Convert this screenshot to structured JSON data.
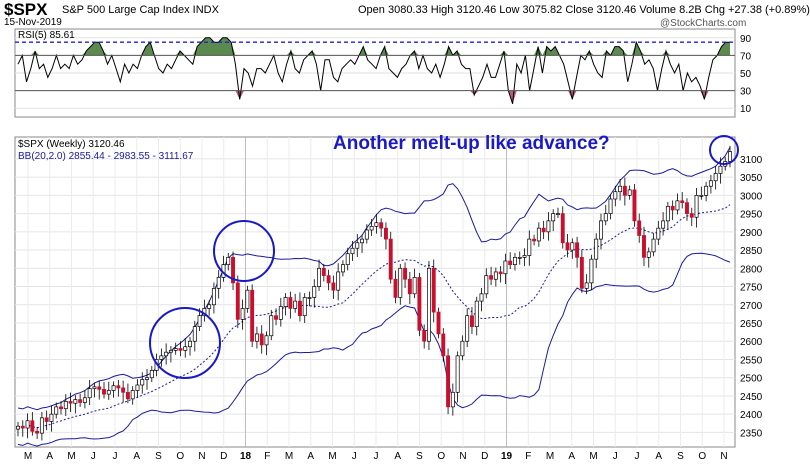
{
  "header": {
    "symbol": "$SPX",
    "name": "S&P 500 Large Cap Index INDX",
    "date": "15-Nov-2019",
    "ohlc": "Open 3080.33  High 3120.46  Low 3075.82  Close 3120.46  Volume 8.2B  Chg +27.38 (+0.89%)",
    "brand": "@StockCharts.com"
  },
  "annotation": "Another melt-up like advance?",
  "chart_data": [
    {
      "type": "line",
      "panel": "RSI",
      "legend": "RSI(5) 85.61",
      "ylim": [
        0,
        100
      ],
      "y_ticks": [
        "90",
        "70",
        "50",
        "30",
        "10"
      ],
      "reference_lines": [
        85,
        70,
        30
      ],
      "fill_above": 70,
      "fill_below": 30,
      "series": [
        {
          "values": [
            60,
            70,
            40,
            55,
            75,
            55,
            60,
            45,
            55,
            70,
            55,
            60,
            55,
            70,
            60,
            65,
            75,
            80,
            85,
            85,
            75,
            60,
            70,
            55,
            40,
            60,
            50,
            60,
            55,
            70,
            80,
            85,
            70,
            55,
            50,
            60,
            55,
            65,
            75,
            70,
            65,
            60,
            80,
            85,
            90,
            90,
            85,
            85,
            90,
            90,
            85,
            60,
            20,
            55,
            50,
            35,
            55,
            55,
            50,
            60,
            70,
            50,
            40,
            60,
            75,
            55,
            50,
            65,
            70,
            75,
            60,
            30,
            65,
            65,
            45,
            40,
            55,
            60,
            65,
            60,
            70,
            80,
            65,
            60,
            55,
            70,
            80,
            55,
            50,
            45,
            55,
            60,
            70,
            75,
            55,
            70,
            55,
            50,
            60,
            45,
            60,
            80,
            70,
            75,
            60,
            55,
            55,
            25,
            35,
            45,
            60,
            45,
            45,
            60,
            75,
            30,
            15,
            60,
            50,
            70,
            30,
            55,
            80,
            50,
            80,
            75,
            80,
            70,
            60,
            40,
            20,
            45,
            70,
            65,
            75,
            60,
            50,
            45,
            75,
            70,
            80,
            80,
            75,
            40,
            60,
            85,
            75,
            60,
            65,
            55,
            30,
            55,
            75,
            60,
            50,
            60,
            30,
            50,
            40,
            45,
            35,
            20,
            45,
            65,
            70,
            80,
            85,
            85
          ]
        }
      ]
    },
    {
      "type": "candlestick",
      "panel": "Price",
      "legend": "$SPX (Weekly) 3120.46",
      "bb_legend": "BB(20,2.0) 2855.44 - 2983.55 - 3111.67",
      "ylim": [
        2310,
        3160
      ],
      "y_ticks": [
        "3100",
        "3050",
        "3000",
        "2950",
        "2900",
        "2850",
        "2800",
        "2750",
        "2700",
        "2650",
        "2600",
        "2550",
        "2500",
        "2450",
        "2400",
        "2350"
      ],
      "x_tick_labels": [
        "M",
        "A",
        "M",
        "J",
        "J",
        "A",
        "S",
        "O",
        "N",
        "D",
        "18",
        "F",
        "M",
        "A",
        "M",
        "J",
        "J",
        "A",
        "S",
        "O",
        "N",
        "D",
        "19",
        "F",
        "M",
        "A",
        "M",
        "J",
        "J",
        "A",
        "S",
        "O",
        "N"
      ],
      "close": [
        2367,
        2362,
        2382,
        2353,
        2348,
        2390,
        2380,
        2400,
        2420,
        2415,
        2435,
        2430,
        2440,
        2432,
        2445,
        2470,
        2475,
        2468,
        2455,
        2465,
        2478,
        2472,
        2460,
        2442,
        2465,
        2480,
        2495,
        2500,
        2520,
        2550,
        2560,
        2570,
        2575,
        2580,
        2575,
        2585,
        2600,
        2640,
        2670,
        2690,
        2700,
        2745,
        2775,
        2810,
        2830,
        2760,
        2660,
        2690,
        2740,
        2600,
        2620,
        2590,
        2615,
        2670,
        2660,
        2695,
        2720,
        2690,
        2710,
        2670,
        2720,
        2720,
        2750,
        2800,
        2780,
        2760,
        2740,
        2790,
        2810,
        2840,
        2855,
        2870,
        2880,
        2905,
        2915,
        2925,
        2910,
        2880,
        2770,
        2720,
        2800,
        2770,
        2730,
        2775,
        2630,
        2600,
        2800,
        2680,
        2620,
        2560,
        2420,
        2460,
        2560,
        2600,
        2670,
        2640,
        2710,
        2730,
        2780,
        2770,
        2790,
        2785,
        2820,
        2810,
        2830,
        2830,
        2835,
        2880,
        2875,
        2910,
        2900,
        2930,
        2950,
        2950,
        2870,
        2850,
        2870,
        2830,
        2745,
        2760,
        2825,
        2880,
        2930,
        2950,
        2990,
        3010,
        3025,
        3000,
        3015,
        2930,
        2890,
        2830,
        2845,
        2880,
        2910,
        2930,
        2970,
        2960,
        2985,
        2980,
        2950,
        2940,
        3000,
        3000,
        3025,
        3040,
        3060,
        3080,
        3093,
        3120
      ]
    }
  ]
}
